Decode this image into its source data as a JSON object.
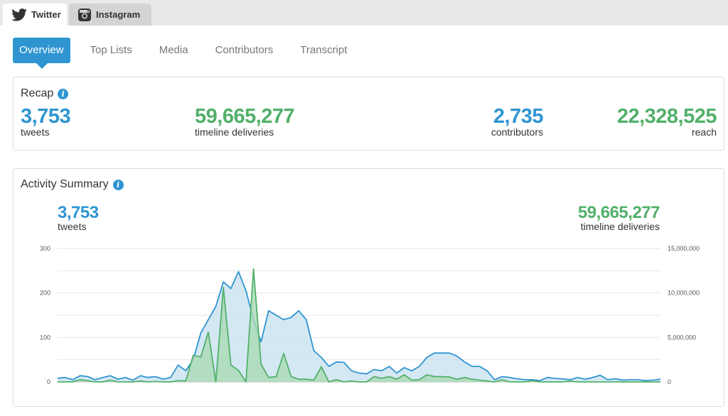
{
  "platform_tabs": [
    {
      "label": "Twitter",
      "icon": "twitter-bird-icon",
      "active": true
    },
    {
      "label": "Instagram",
      "icon": "instagram-camera-icon",
      "active": false
    }
  ],
  "subtabs": [
    "Overview",
    "Top Lists",
    "Media",
    "Contributors",
    "Transcript"
  ],
  "recap": {
    "title": "Recap",
    "tweets": {
      "value": "3,753",
      "label": "tweets"
    },
    "deliveries": {
      "value": "59,665,277",
      "label": "timeline deliveries"
    },
    "contributors": {
      "value": "2,735",
      "label": "contributors"
    },
    "reach": {
      "value": "22,328,525",
      "label": "reach"
    }
  },
  "activity": {
    "title": "Activity Summary",
    "tweets": {
      "value": "3,753",
      "label": "tweets"
    },
    "deliveries": {
      "value": "59,665,277",
      "label": "timeline deliveries"
    }
  },
  "colors": {
    "blue": "#2f95d1",
    "green": "#52b06a",
    "blue_fill": "#c5e0f0",
    "green_fill": "#a9d9b4"
  },
  "chart_data": {
    "type": "area",
    "ylim_left": [
      0,
      300
    ],
    "ylim_right": [
      0,
      15000000
    ],
    "yticks_left": [
      "0",
      "100",
      "200",
      "300"
    ],
    "yticks_right": [
      "0",
      "5,000,000",
      "10,000,000",
      "15,000,000"
    ],
    "series": [
      {
        "axis": "left",
        "values": [
          8,
          10,
          5,
          14,
          12,
          5,
          10,
          14,
          6,
          10,
          4,
          14,
          10,
          12,
          6,
          10,
          38,
          25,
          50,
          110,
          140,
          170,
          225,
          210,
          248,
          205,
          140,
          90,
          160,
          150,
          140,
          145,
          160,
          140,
          70,
          55,
          35,
          45,
          44,
          25,
          20,
          18,
          28,
          25,
          35,
          20,
          32,
          25,
          35,
          55,
          65,
          65,
          65,
          58,
          45,
          35,
          35,
          25,
          5,
          12,
          10,
          7,
          5,
          5,
          3,
          10,
          8,
          7,
          5,
          10,
          6,
          10,
          15,
          5,
          7,
          4,
          5,
          5,
          3,
          4,
          6
        ],
        "max_points": 81
      },
      {
        "axis": "right",
        "values": [
          0,
          0,
          0,
          250000,
          150000,
          0,
          0,
          200000,
          0,
          0,
          0,
          100000,
          0,
          50000,
          0,
          0,
          150000,
          100000,
          3000000,
          2800000,
          5600000,
          0,
          10600000,
          1900000,
          1300000,
          0,
          12700000,
          2000000,
          500000,
          600000,
          3200000,
          600000,
          300000,
          300000,
          200000,
          1700000,
          0,
          250000,
          0,
          100000,
          0,
          0,
          600000,
          400000,
          600000,
          300000,
          800000,
          200000,
          250000,
          800000,
          600000,
          600000,
          550000,
          300000,
          500000,
          300000,
          200000,
          100000,
          0,
          250000,
          0,
          0,
          0,
          150000,
          0,
          0,
          0,
          0,
          100000,
          0,
          0,
          0,
          0,
          0,
          0,
          0,
          0,
          0,
          0,
          0,
          0
        ]
      }
    ]
  }
}
